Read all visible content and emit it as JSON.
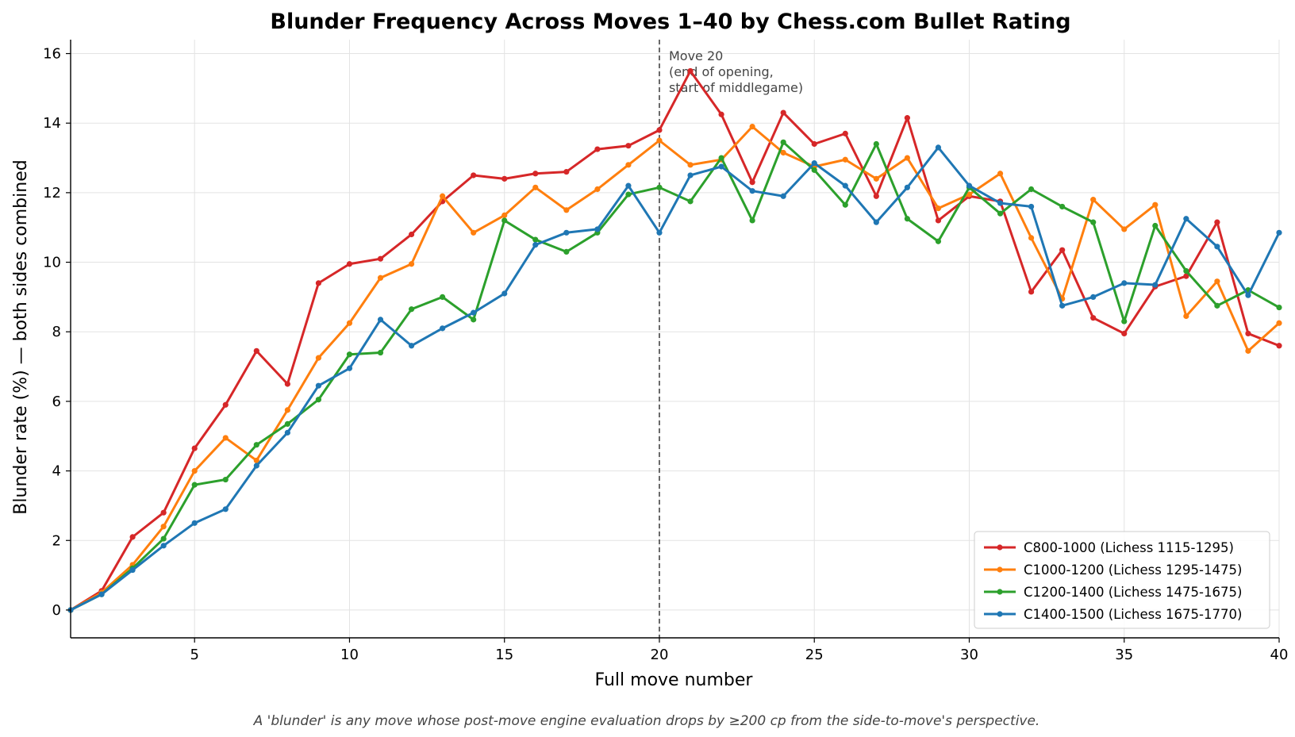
{
  "chart_data": {
    "type": "line",
    "title": "Blunder Frequency Across Moves 1–40 by Chess.com Bullet Rating",
    "xlabel": "Full move number",
    "ylabel": "Blunder rate (%) — both sides combined",
    "xlim": [
      1,
      40
    ],
    "ylim": [
      -0.8,
      16.4
    ],
    "xticks": [
      5,
      10,
      15,
      20,
      25,
      30,
      35,
      40
    ],
    "yticks": [
      0,
      2,
      4,
      6,
      8,
      10,
      12,
      14,
      16
    ],
    "grid": true,
    "legend_position": "bottom-right",
    "x": [
      1,
      2,
      3,
      4,
      5,
      6,
      7,
      8,
      9,
      10,
      11,
      12,
      13,
      14,
      15,
      16,
      17,
      18,
      19,
      20,
      21,
      22,
      23,
      24,
      25,
      26,
      27,
      28,
      29,
      30,
      31,
      32,
      33,
      34,
      35,
      36,
      37,
      38,
      39,
      40
    ],
    "series": [
      {
        "name": "C800-1000 (Lichess 1115-1295)",
        "color": "#d62728",
        "values": [
          0.0,
          0.55,
          2.1,
          2.8,
          4.65,
          5.9,
          7.45,
          6.5,
          9.4,
          9.95,
          10.1,
          10.8,
          11.75,
          12.5,
          12.4,
          12.55,
          12.6,
          13.25,
          13.35,
          13.8,
          15.5,
          14.25,
          12.3,
          14.3,
          13.4,
          13.7,
          11.9,
          14.15,
          11.2,
          11.9,
          11.75,
          9.15,
          10.35,
          8.4,
          7.95,
          9.3,
          9.6,
          11.15,
          7.95,
          7.6
        ]
      },
      {
        "name": "C1000-1200 (Lichess 1295-1475)",
        "color": "#ff7f0e",
        "values": [
          0.0,
          0.5,
          1.3,
          2.4,
          4.0,
          4.95,
          4.3,
          5.75,
          7.25,
          8.25,
          9.55,
          9.95,
          11.9,
          10.85,
          11.35,
          12.15,
          11.5,
          12.1,
          12.8,
          13.5,
          12.8,
          12.95,
          13.9,
          13.15,
          12.75,
          12.95,
          12.4,
          13.0,
          11.55,
          11.95,
          12.55,
          10.7,
          8.95,
          11.8,
          10.95,
          11.65,
          8.45,
          9.45,
          7.45,
          8.25
        ]
      },
      {
        "name": "C1200-1400 (Lichess 1475-1675)",
        "color": "#2ca02c",
        "values": [
          0.0,
          0.45,
          1.2,
          2.05,
          3.6,
          3.75,
          4.75,
          5.35,
          6.05,
          7.35,
          7.4,
          8.65,
          9.0,
          8.35,
          11.2,
          10.65,
          10.3,
          10.85,
          11.95,
          12.15,
          11.75,
          13.0,
          11.2,
          13.45,
          12.65,
          11.65,
          13.4,
          11.25,
          10.6,
          12.15,
          11.4,
          12.1,
          11.6,
          11.15,
          8.3,
          11.05,
          9.75,
          8.75,
          9.2,
          8.7
        ]
      },
      {
        "name": "C1400-1500 (Lichess 1675-1770)",
        "color": "#1f77b4",
        "values": [
          0.0,
          0.45,
          1.15,
          1.85,
          2.5,
          2.9,
          4.15,
          5.1,
          6.45,
          6.95,
          8.35,
          7.6,
          8.1,
          8.55,
          9.1,
          10.5,
          10.85,
          10.95,
          12.2,
          10.85,
          12.5,
          12.75,
          12.05,
          11.9,
          12.85,
          12.2,
          11.15,
          12.15,
          13.3,
          12.2,
          11.7,
          11.6,
          8.75,
          9.0,
          9.4,
          9.35,
          11.25,
          10.45,
          9.05,
          10.85
        ]
      }
    ],
    "annotations": [
      {
        "x": 20,
        "lines": [
          "Move 20",
          "(end of opening,",
          "start of middlegame)"
        ]
      }
    ],
    "footnote": "A 'blunder' is any move whose post-move engine evaluation drops by ≥200 cp from the side-to-move's perspective."
  }
}
